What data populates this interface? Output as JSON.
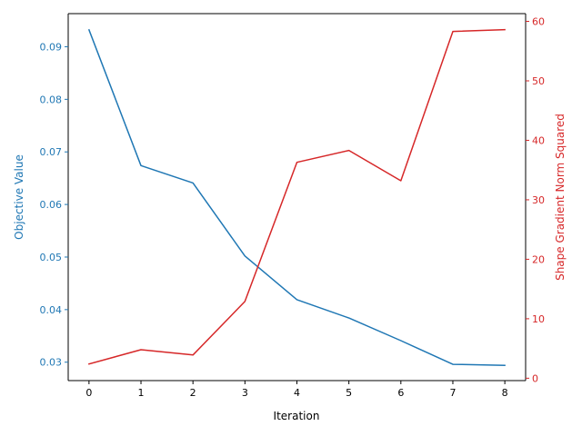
{
  "chart_data": {
    "type": "line",
    "xlabel": "Iteration",
    "x": [
      0,
      1,
      2,
      3,
      4,
      5,
      6,
      7,
      8
    ],
    "xlim": [
      -0.4,
      8.4
    ],
    "xticks": [
      "0",
      "1",
      "2",
      "3",
      "4",
      "5",
      "6",
      "7",
      "8"
    ],
    "left_axis": {
      "label": "Objective Value",
      "color": "#1f77b4",
      "ylim": [
        0.0265,
        0.0963
      ],
      "ticks": [
        "0.03",
        "0.04",
        "0.05",
        "0.06",
        "0.07",
        "0.08",
        "0.09"
      ]
    },
    "right_axis": {
      "label": "Shape Gradient Norm Squared",
      "color": "#d62728",
      "ylim": [
        -0.4,
        61.3
      ],
      "ticks": [
        "0",
        "10",
        "20",
        "30",
        "40",
        "50",
        "60"
      ]
    },
    "series": [
      {
        "axis": "left",
        "color": "#1f77b4",
        "values": [
          0.0932,
          0.0674,
          0.0641,
          0.0502,
          0.0419,
          0.0384,
          0.0341,
          0.0296,
          0.0294
        ]
      },
      {
        "axis": "right",
        "color": "#d62728",
        "values": [
          2.4,
          4.8,
          3.9,
          12.9,
          36.3,
          38.3,
          33.2,
          58.3,
          58.6
        ]
      }
    ],
    "grid": false,
    "legend": "none"
  }
}
